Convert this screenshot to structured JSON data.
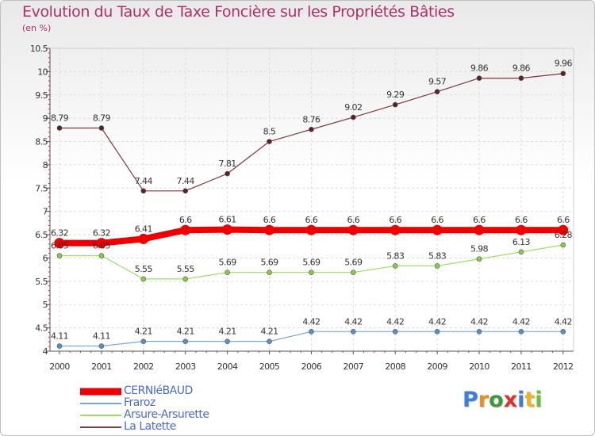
{
  "title": "Evolution du Taux de Taxe Foncière sur les Propriétés Bâties",
  "unit": "(en %)",
  "logo": {
    "letters": [
      "P",
      "r",
      "o",
      "x",
      "i",
      "t",
      "i"
    ],
    "colors": [
      "#3a7ee0",
      "#f08c1a",
      "#3a9a3a",
      "#e0302a",
      "#3a7ee0",
      "#f0b21a",
      "#6abf3a"
    ]
  },
  "chart_data": {
    "type": "line",
    "title": "Evolution du Taux de Taxe Foncière sur les Propriétés Bâties",
    "ylabel": "(en %)",
    "xlabel": "",
    "x": [
      "2000",
      "2001",
      "2002",
      "2003",
      "2004",
      "2005",
      "2006",
      "2007",
      "2008",
      "2009",
      "2010",
      "2011",
      "2012"
    ],
    "ylim": [
      4,
      10.5
    ],
    "yticks": [
      "4",
      "4.5",
      "5",
      "5.5",
      "6",
      "6.5",
      "7",
      "7.5",
      "8",
      "8.5",
      "9",
      "9.5",
      "10",
      "10.5"
    ],
    "legend_position": "bottom-left",
    "series": [
      {
        "name": "CERNIéBAUD",
        "color": "#ee0000",
        "marker_fill": "#ee0000",
        "emphasis": true,
        "values": [
          6.32,
          6.32,
          6.41,
          6.6,
          6.61,
          6.6,
          6.6,
          6.6,
          6.6,
          6.6,
          6.6,
          6.6,
          6.6
        ],
        "labels": [
          "6.32",
          "6.32",
          "6.41",
          "6.6",
          "6.61",
          "6.6",
          "6.6",
          "6.6",
          "6.6",
          "6.6",
          "6.6",
          "6.6",
          "6.6"
        ]
      },
      {
        "name": "Fraroz",
        "color": "#7aa6cf",
        "marker_fill": "#5b8fc4",
        "emphasis": false,
        "values": [
          4.11,
          4.11,
          4.21,
          4.21,
          4.21,
          4.21,
          4.42,
          4.42,
          4.42,
          4.42,
          4.42,
          4.42,
          4.42
        ],
        "labels": [
          "4.11",
          "4.11",
          "4.21",
          "4.21",
          "4.21",
          "4.21",
          "4.42",
          "4.42",
          "4.42",
          "4.42",
          "4.42",
          "4.42",
          "4.42"
        ]
      },
      {
        "name": "Arsure-Arsurette",
        "color": "#99dd66",
        "marker_fill": "#88cc44",
        "emphasis": false,
        "values": [
          6.05,
          6.05,
          5.55,
          5.55,
          5.69,
          5.69,
          5.69,
          5.69,
          5.83,
          5.83,
          5.98,
          6.13,
          6.28
        ],
        "labels": [
          "6.05",
          "6.05",
          "5.55",
          "5.55",
          "5.69",
          "5.69",
          "5.69",
          "5.69",
          "5.83",
          "5.83",
          "5.98",
          "6.13",
          "6.28"
        ]
      },
      {
        "name": "La Latette",
        "color": "#7a3a40",
        "marker_fill": "#5e1e24",
        "emphasis": false,
        "values": [
          8.79,
          8.79,
          7.44,
          7.44,
          7.81,
          8.5,
          8.76,
          9.02,
          9.29,
          9.57,
          9.86,
          9.86,
          9.96
        ],
        "labels": [
          "8.79",
          "8.79",
          "7.44",
          "7.44",
          "7.81",
          "8.5",
          "8.76",
          "9.02",
          "9.29",
          "9.57",
          "9.86",
          "9.86",
          "9.96"
        ]
      }
    ]
  }
}
